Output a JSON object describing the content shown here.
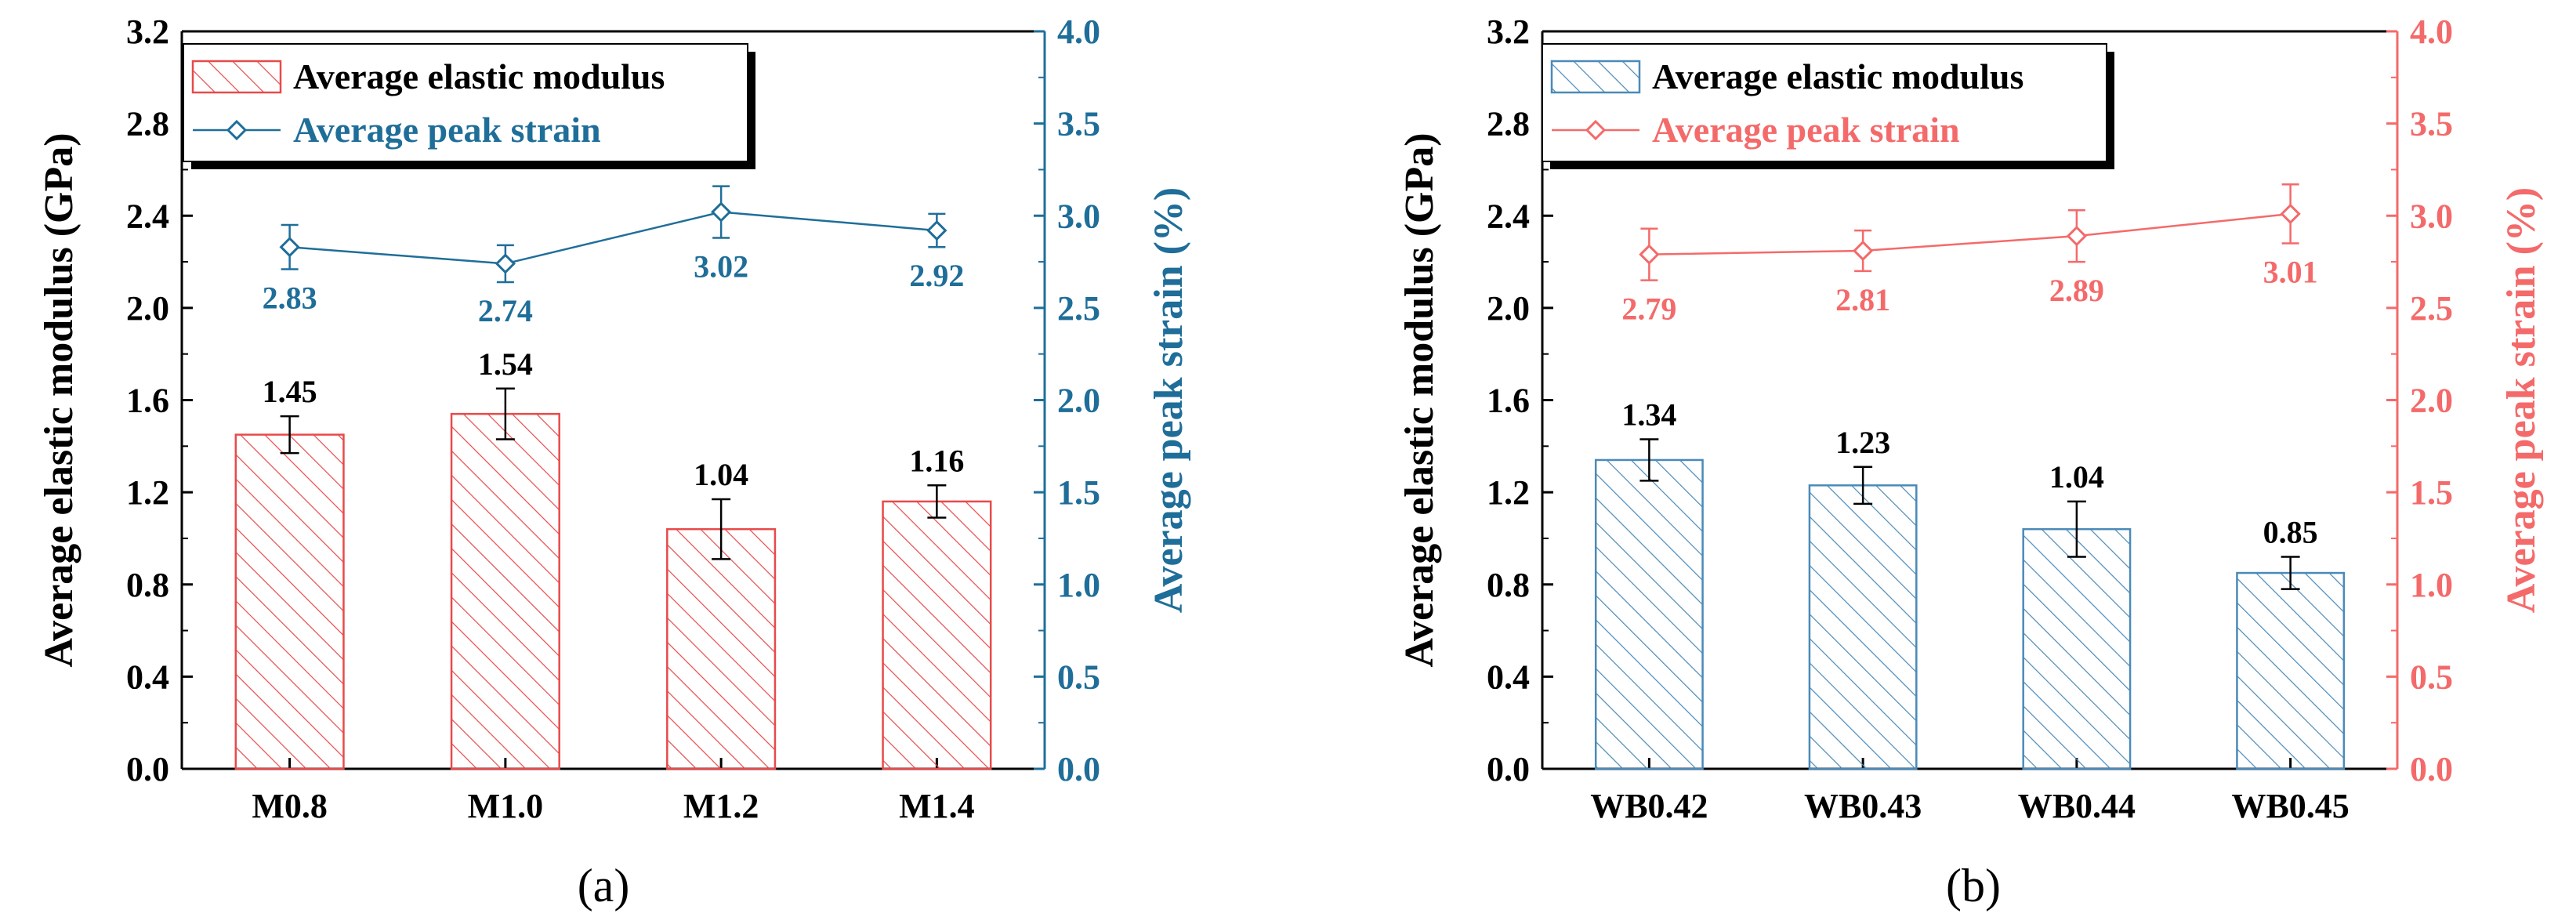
{
  "colors": {
    "left_series": "#1f6e99",
    "right_series": "#f46a6a",
    "left_bar_hatch": "#e84a4a",
    "right_bar_hatch": "#4a8ab8"
  },
  "chart_data": [
    {
      "type": "bar",
      "panel_label": "(a)",
      "categories": [
        "M0.8",
        "M1.0",
        "M1.2",
        "M1.4"
      ],
      "left_axis": {
        "label": "Average elastic modulus (GPa)",
        "ylim": [
          0,
          3.2
        ],
        "ticks": [
          "0.0",
          "0.4",
          "0.8",
          "1.2",
          "1.6",
          "2.0",
          "2.4",
          "2.8",
          "3.2"
        ]
      },
      "right_axis": {
        "label": "Average peak strain (%)",
        "ylim": [
          0,
          4.0
        ],
        "ticks": [
          "0.0",
          "0.5",
          "1.0",
          "1.5",
          "2.0",
          "2.5",
          "3.0",
          "3.5",
          "4.0"
        ]
      },
      "bars": {
        "name": "Average elastic modulus",
        "values": [
          1.45,
          1.54,
          1.04,
          1.16
        ],
        "labels": [
          "1.45",
          "1.54",
          "1.04",
          "1.16"
        ],
        "errors": [
          0.08,
          0.11,
          0.13,
          0.07
        ]
      },
      "line": {
        "name": "Average peak strain",
        "values": [
          2.83,
          2.74,
          3.02,
          2.92
        ],
        "labels": [
          "2.83",
          "2.74",
          "3.02",
          "2.92"
        ],
        "errors": [
          0.12,
          0.1,
          0.14,
          0.09
        ]
      },
      "legend": [
        "Average elastic modulus",
        "Average peak strain"
      ],
      "legend_position": "top-left"
    },
    {
      "type": "bar",
      "panel_label": "(b)",
      "categories": [
        "WB0.42",
        "WB0.43",
        "WB0.44",
        "WB0.45"
      ],
      "left_axis": {
        "label": "Average elastic modulus (GPa)",
        "ylim": [
          0,
          3.2
        ],
        "ticks": [
          "0.0",
          "0.4",
          "0.8",
          "1.2",
          "1.6",
          "2.0",
          "2.4",
          "2.8",
          "3.2"
        ]
      },
      "right_axis": {
        "label": "Average peak strain (%)",
        "ylim": [
          0,
          4.0
        ],
        "ticks": [
          "0.0",
          "0.5",
          "1.0",
          "1.5",
          "2.0",
          "2.5",
          "3.0",
          "3.5",
          "4.0"
        ]
      },
      "bars": {
        "name": "Average elastic modulus",
        "values": [
          1.34,
          1.23,
          1.04,
          0.85
        ],
        "labels": [
          "1.34",
          "1.23",
          "1.04",
          "0.85"
        ],
        "errors": [
          0.09,
          0.08,
          0.12,
          0.07
        ]
      },
      "line": {
        "name": "Average peak strain",
        "values": [
          2.79,
          2.81,
          2.89,
          3.01
        ],
        "labels": [
          "2.79",
          "2.81",
          "2.89",
          "3.01"
        ],
        "errors": [
          0.14,
          0.11,
          0.14,
          0.16
        ]
      },
      "legend": [
        "Average elastic modulus",
        "Average peak strain"
      ],
      "legend_position": "top-left"
    }
  ]
}
